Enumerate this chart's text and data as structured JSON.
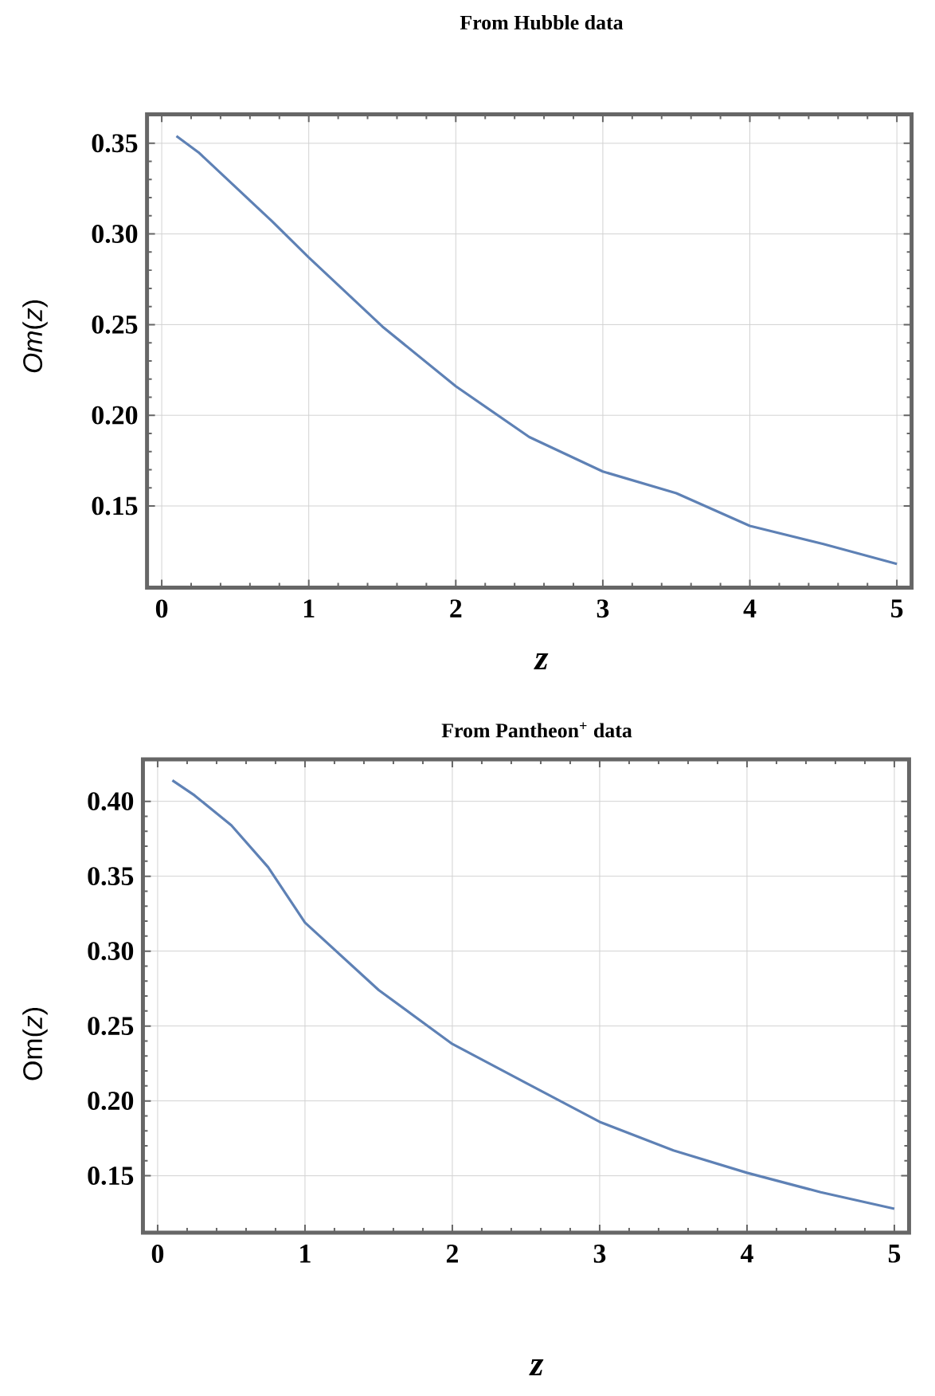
{
  "chart_data": [
    {
      "type": "line",
      "title": "From Hubble data",
      "xlabel": "*z*",
      "ylabel": "*Om*(*z*)",
      "x": [
        0.1,
        0.25,
        0.5,
        0.75,
        1,
        1.5,
        2,
        2.5,
        3,
        3.5,
        4,
        4.5,
        5
      ],
      "series": [
        {
          "color": "#5e81b5",
          "values": [
            0.354,
            0.345,
            0.326,
            0.307,
            0.287,
            0.249,
            0.216,
            0.188,
            0.169,
            0.157,
            0.139,
            0.129,
            0.118
          ]
        }
      ],
      "xlim": [
        -0.1,
        5.1
      ],
      "ylim": [
        0.105,
        0.366
      ],
      "xticks": [
        0,
        1,
        2,
        3,
        4,
        5
      ],
      "yticks": [
        0.15,
        {
          "value": 0.2,
          "label": "0.20"
        },
        0.25,
        {
          "value": 0.3,
          "label": "0.30"
        },
        0.35
      ],
      "grid": true,
      "line_style": "solid",
      "marker": "none"
    },
    {
      "type": "line",
      "title": "From Pantheon$^{+}$ data",
      "xlabel": "*z*",
      "ylabel": "Om(*z*)",
      "x": [
        0.1,
        0.25,
        0.5,
        0.75,
        1,
        1.5,
        2,
        2.5,
        3,
        3.5,
        4,
        4.5,
        5
      ],
      "series": [
        {
          "color": "#5e81b5",
          "values": [
            0.414,
            0.404,
            0.384,
            0.356,
            0.319,
            0.274,
            0.238,
            0.212,
            0.186,
            0.167,
            0.152,
            0.139,
            0.128
          ]
        }
      ],
      "xlim": [
        -0.1,
        5.1
      ],
      "ylim": [
        0.112,
        0.428
      ],
      "xticks": [
        0,
        1,
        2,
        3,
        4,
        5
      ],
      "yticks": [
        0.15,
        {
          "value": 0.2,
          "label": "0.20"
        },
        0.25,
        {
          "value": 0.3,
          "label": "0.30"
        },
        0.35,
        {
          "value": 0.4,
          "label": "0.40"
        }
      ],
      "grid": true,
      "line_style": "solid",
      "marker": "none"
    }
  ]
}
